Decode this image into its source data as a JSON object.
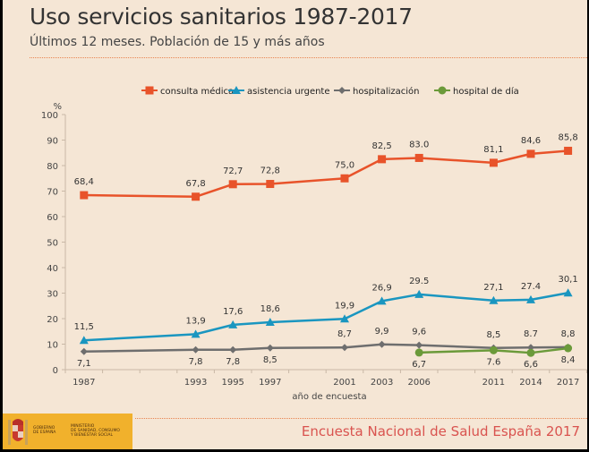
{
  "header": {
    "title": "Uso servicios sanitarios 1987-2017",
    "subtitle": "Últimos 12 meses. Población de 15 y más años"
  },
  "footer": {
    "title": "Encuesta Nacional de Salud España 2017",
    "gov_line1": "GOBIERNO\nDE ESPAÑA",
    "gov_line2": "MINISTERIO\nDE SANIDAD, CONSUMO\nY BIENESTAR SOCIAL",
    "brand_color": "#f1b12c"
  },
  "chart_data": {
    "type": "line",
    "title": "Uso servicios sanitarios 1987-2017",
    "subtitle": "Últimos 12 meses. Población de 15 y más años",
    "xlabel": "año de encuesta",
    "ylabel": "%",
    "ylim": [
      0,
      100
    ],
    "yticks": [
      0,
      10,
      20,
      30,
      40,
      50,
      60,
      70,
      80,
      90,
      100
    ],
    "x_slots": [
      "1987",
      "",
      "",
      "1993",
      "1995",
      "1997",
      "",
      "2001",
      "2003",
      "2006",
      "",
      "2011",
      "2014",
      "2017"
    ],
    "categories": [
      "1987",
      "1993",
      "1995",
      "1997",
      "2001",
      "2003",
      "2006",
      "2011",
      "2014",
      "2017"
    ],
    "legend_position": "top",
    "grid": false,
    "series": [
      {
        "name": "consulta médica",
        "color": "#e8532a",
        "marker": "square",
        "values": [
          68.4,
          67.8,
          72.7,
          72.8,
          75.0,
          82.5,
          83.0,
          81.1,
          84.6,
          85.8
        ],
        "labels": [
          "68,4",
          "67,8",
          "72,7",
          "72,8",
          "75,0",
          "82,5",
          "83.0",
          "81,1",
          "84,6",
          "85,8"
        ],
        "label_pos": "above"
      },
      {
        "name": "asistencia urgente",
        "color": "#1a96c0",
        "marker": "triangle",
        "values": [
          11.5,
          13.9,
          17.6,
          18.6,
          19.9,
          26.9,
          29.5,
          27.1,
          27.4,
          30.1
        ],
        "labels": [
          "11,5",
          "13,9",
          "17,6",
          "18,6",
          "19,9",
          "26,9",
          "29.5",
          "27,1",
          "27.4",
          "30,1"
        ],
        "label_pos": "above"
      },
      {
        "name": "hospitalización",
        "color": "#6e6e6e",
        "marker": "diamond",
        "values": [
          7.1,
          7.8,
          7.8,
          8.5,
          8.7,
          9.9,
          9.6,
          8.5,
          8.7,
          8.8
        ],
        "labels": [
          "7,1",
          "7,8",
          "7,8",
          "8,5",
          "8,7",
          "9,9",
          "9,6",
          "8,5",
          "8.7",
          "8,8"
        ],
        "label_pos": [
          "below",
          "below",
          "below",
          "below",
          "above",
          "above",
          "above",
          "above",
          "above",
          "above"
        ]
      },
      {
        "name": "hospital de día",
        "color": "#6b9a3a",
        "marker": "circle",
        "values": [
          null,
          null,
          null,
          null,
          null,
          null,
          6.7,
          7.6,
          6.6,
          8.4
        ],
        "labels": [
          "",
          "",
          "",
          "",
          "",
          "",
          "6,7",
          "7.6",
          "6,6",
          "8,4"
        ],
        "label_pos": "below"
      }
    ]
  }
}
